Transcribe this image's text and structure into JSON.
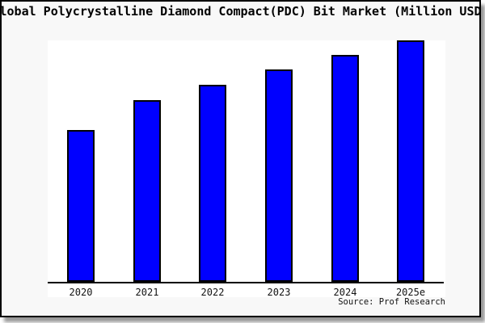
{
  "page": {
    "title": "Global Polycrystalline Diamond Compact(PDC) Bit Market (Million USD)",
    "source": "Source: Prof Research"
  },
  "chart_data": {
    "type": "bar",
    "title": "Global Polycrystalline Diamond Compact(PDC) Bit Market (Million USD)",
    "categories": [
      "2020",
      "2021",
      "2022",
      "2023",
      "2024",
      "2025e"
    ],
    "values_relative": [
      62.8,
      75.2,
      81.5,
      87.9,
      93.9,
      100
    ],
    "values_note": "No y-axis or data labels are shown in the chart; values are relative bar heights indexed to 2025e = 100",
    "xlabel": "",
    "ylabel": "",
    "legend": false,
    "grid": false,
    "bar_color": "#0000ff",
    "bar_border_color": "#000000",
    "axis_color": "#000000",
    "source": "Source: Prof Research"
  },
  "colors": {
    "background": "#f8f8f8",
    "plot_background": "#ffffff",
    "frame_border": "#000000",
    "title_text": "#000000",
    "shadow": "#999999"
  }
}
